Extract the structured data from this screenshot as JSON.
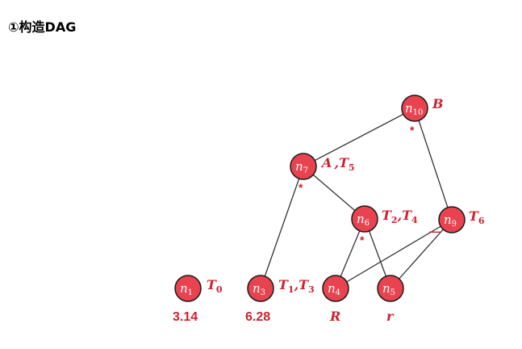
{
  "title": "①构造DAG",
  "nodes": {
    "n1": {
      "base": "n",
      "sub": "1"
    },
    "n3": {
      "base": "n",
      "sub": "3"
    },
    "n4": {
      "base": "n",
      "sub": "4"
    },
    "n5": {
      "base": "n",
      "sub": "5"
    },
    "n6": {
      "base": "n",
      "sub": "6"
    },
    "n7": {
      "base": "n",
      "sub": "7"
    },
    "n9": {
      "base": "n",
      "sub": "9"
    },
    "n10": {
      "base": "n",
      "sub": "10"
    }
  },
  "labels": {
    "n1": {
      "text": "T",
      "sub": "0"
    },
    "n3": {
      "text": "T",
      "sub1": "1",
      "mid": ",",
      "text2": "T",
      "sub2": "3"
    },
    "n6": {
      "text": "T",
      "sub1": "2",
      "mid": ",",
      "text2": "T",
      "sub2": "4"
    },
    "n7": {
      "prefix": "A",
      "mid": ",",
      "text": "T",
      "sub": "5"
    },
    "n9": {
      "text": "T",
      "sub": "6"
    },
    "n10": {
      "text": "B"
    }
  },
  "operators": {
    "n10": "*",
    "n7": "*",
    "n6": "*",
    "n9": "—"
  },
  "values": {
    "n1": "3.14",
    "n3": "6.28",
    "n4": "R",
    "n5": "r"
  }
}
